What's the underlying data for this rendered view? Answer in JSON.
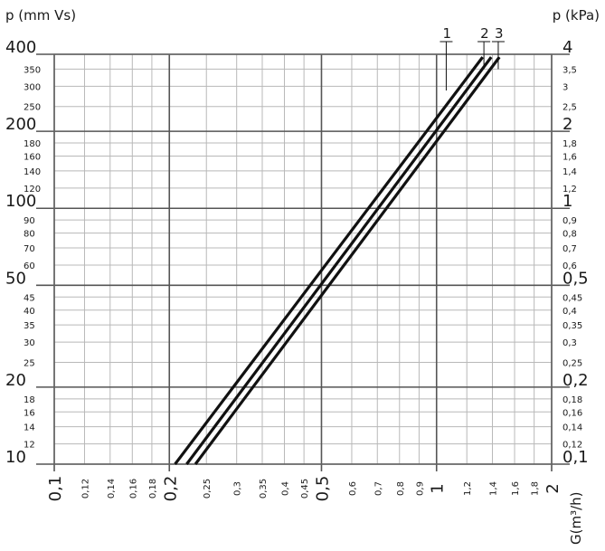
{
  "chart_data": {
    "type": "line",
    "title": "",
    "ylabel_left": "p (mm Vs)",
    "ylabel_right": "p (kPa)",
    "xlabel": "G(m³/h)",
    "x_scale": "log",
    "y_scale": "log",
    "xlim": [
      0.1,
      2
    ],
    "ylim": [
      10,
      400
    ],
    "grid": true,
    "legend": "labels at top of lines",
    "x_ticks_major": [
      {
        "value": 0.1,
        "label": "0,1"
      },
      {
        "value": 0.2,
        "label": "0,2"
      },
      {
        "value": 0.5,
        "label": "0,5"
      },
      {
        "value": 1,
        "label": "1"
      },
      {
        "value": 2,
        "label": "2"
      }
    ],
    "x_ticks_minor": [
      {
        "value": 0.12,
        "label": "0,12"
      },
      {
        "value": 0.14,
        "label": "0,14"
      },
      {
        "value": 0.16,
        "label": "0,16"
      },
      {
        "value": 0.18,
        "label": "0,18"
      },
      {
        "value": 0.25,
        "label": "0,25"
      },
      {
        "value": 0.3,
        "label": "0,3"
      },
      {
        "value": 0.35,
        "label": "0,35"
      },
      {
        "value": 0.4,
        "label": "0,4"
      },
      {
        "value": 0.45,
        "label": "0,45"
      },
      {
        "value": 0.6,
        "label": "0,6"
      },
      {
        "value": 0.7,
        "label": "0,7"
      },
      {
        "value": 0.8,
        "label": "0,8"
      },
      {
        "value": 0.9,
        "label": "0,9"
      },
      {
        "value": 1.2,
        "label": "1,2"
      },
      {
        "value": 1.4,
        "label": "1,4"
      },
      {
        "value": 1.6,
        "label": "1,6"
      },
      {
        "value": 1.8,
        "label": "1,8"
      }
    ],
    "y_ticks_major": [
      {
        "value": 10,
        "label": "10",
        "kpa": "0,1"
      },
      {
        "value": 20,
        "label": "20",
        "kpa": "0,2"
      },
      {
        "value": 50,
        "label": "50",
        "kpa": "0,5"
      },
      {
        "value": 100,
        "label": "100",
        "kpa": "1"
      },
      {
        "value": 200,
        "label": "200",
        "kpa": "2"
      },
      {
        "value": 400,
        "label": "400",
        "kpa": "4"
      }
    ],
    "y_ticks_minor": [
      {
        "value": 12,
        "label": "12",
        "kpa": "0,12"
      },
      {
        "value": 14,
        "label": "14",
        "kpa": "0,14"
      },
      {
        "value": 16,
        "label": "16",
        "kpa": "0,16"
      },
      {
        "value": 18,
        "label": "18",
        "kpa": "0,18"
      },
      {
        "value": 25,
        "label": "25",
        "kpa": "0,25"
      },
      {
        "value": 30,
        "label": "30",
        "kpa": "0,3"
      },
      {
        "value": 35,
        "label": "35",
        "kpa": "0,35"
      },
      {
        "value": 40,
        "label": "40",
        "kpa": "0,4"
      },
      {
        "value": 45,
        "label": "45",
        "kpa": "0,45"
      },
      {
        "value": 60,
        "label": "60",
        "kpa": "0,6"
      },
      {
        "value": 70,
        "label": "70",
        "kpa": "0,7"
      },
      {
        "value": 80,
        "label": "80",
        "kpa": "0,8"
      },
      {
        "value": 90,
        "label": "90",
        "kpa": "0,9"
      },
      {
        "value": 120,
        "label": "120",
        "kpa": "1,2"
      },
      {
        "value": 140,
        "label": "140",
        "kpa": "1,4"
      },
      {
        "value": 160,
        "label": "160",
        "kpa": "1,6"
      },
      {
        "value": 180,
        "label": "180",
        "kpa": "1,8"
      },
      {
        "value": 250,
        "label": "250",
        "kpa": "2,5"
      },
      {
        "value": 300,
        "label": "300",
        "kpa": "3"
      },
      {
        "value": 350,
        "label": "350",
        "kpa": "3,5"
      }
    ],
    "series": [
      {
        "name": "1",
        "points": [
          [
            0.207,
            10
          ],
          [
            1.32,
            390
          ]
        ],
        "label_x": 1.06
      },
      {
        "name": "2",
        "points": [
          [
            0.222,
            10
          ],
          [
            1.39,
            390
          ]
        ],
        "label_x": 1.33
      },
      {
        "name": "3",
        "points": [
          [
            0.234,
            10
          ],
          [
            1.46,
            390
          ]
        ],
        "label_x": 1.45
      }
    ]
  }
}
